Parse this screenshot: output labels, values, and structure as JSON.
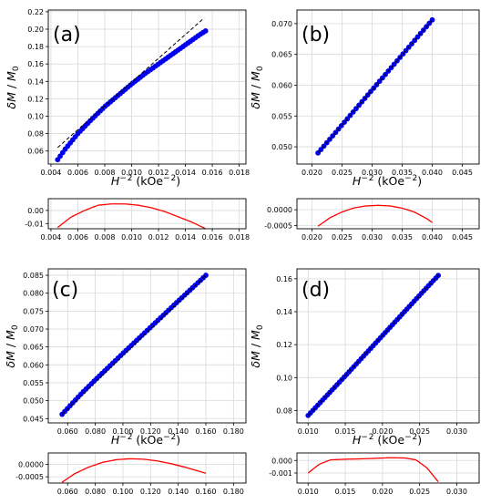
{
  "figure": {
    "panels": [
      {
        "id": "a",
        "label": "(a)"
      },
      {
        "id": "b",
        "label": "(b)"
      },
      {
        "id": "c",
        "label": "(c)"
      },
      {
        "id": "d",
        "label": "(d)"
      }
    ],
    "colors": {
      "points": "#0000ee",
      "fit_line": "#000000",
      "residual": "#ff0000",
      "grid": "#d9d9d9"
    }
  },
  "chart_data": [
    {
      "panel": "(a)",
      "type": "scatter",
      "xlabel": "H^-2 (kOe^-2)",
      "ylabel": "δM / M0",
      "xlim": [
        0.0038,
        0.0185
      ],
      "ylim": [
        0.045,
        0.222
      ],
      "xticks": [
        0.004,
        0.006,
        0.008,
        0.01,
        0.012,
        0.014,
        0.016,
        0.018
      ],
      "xtick_labels": [
        "0.004",
        "0.006",
        "0.008",
        "0.010",
        "0.012",
        "0.014",
        "0.016",
        "0.018"
      ],
      "yticks": [
        0.06,
        0.08,
        0.1,
        0.12,
        0.14,
        0.16,
        0.18,
        0.2,
        0.22
      ],
      "ytick_labels": [
        "0.06",
        "0.08",
        "0.10",
        "0.12",
        "0.14",
        "0.16",
        "0.18",
        "0.20",
        "0.22"
      ],
      "grid": true,
      "series": [
        {
          "kind": "points",
          "x_start": 0.0045,
          "x_end": 0.0155,
          "count": 60,
          "curve": [
            [
              0.0045,
              0.05
            ],
            [
              0.005,
              0.061
            ],
            [
              0.006,
              0.08
            ],
            [
              0.007,
              0.096
            ],
            [
              0.008,
              0.111
            ],
            [
              0.009,
              0.124
            ],
            [
              0.01,
              0.137
            ],
            [
              0.011,
              0.149
            ],
            [
              0.012,
              0.16
            ],
            [
              0.013,
              0.171
            ],
            [
              0.014,
              0.182
            ],
            [
              0.015,
              0.193
            ],
            [
              0.0155,
              0.198
            ]
          ]
        },
        {
          "kind": "fit_line",
          "style": "dashed",
          "x": [
            0.0045,
            0.0154
          ],
          "y": [
            0.064,
            0.213
          ]
        }
      ],
      "residual": {
        "xlim": [
          0.0038,
          0.0185
        ],
        "ylim": [
          -0.014,
          0.009
        ],
        "yticks": [
          0.0,
          -0.01
        ],
        "ytick_labels": [
          "0.00",
          "-0.01"
        ],
        "xticks": [
          0.004,
          0.006,
          0.008,
          0.01,
          0.012,
          0.014,
          0.016,
          0.018
        ],
        "xtick_labels": [
          "0.004",
          "0.006",
          "0.008",
          "0.010",
          "0.012",
          "0.014",
          "0.016",
          "0.018"
        ],
        "curve": [
          [
            0.0045,
            -0.013
          ],
          [
            0.0055,
            -0.005
          ],
          [
            0.0065,
            0.0
          ],
          [
            0.0075,
            0.004
          ],
          [
            0.0085,
            0.005
          ],
          [
            0.0095,
            0.005
          ],
          [
            0.0105,
            0.004
          ],
          [
            0.0115,
            0.002
          ],
          [
            0.0125,
            -0.001
          ],
          [
            0.0135,
            -0.005
          ],
          [
            0.0145,
            -0.009
          ],
          [
            0.0155,
            -0.014
          ]
        ]
      }
    },
    {
      "panel": "(b)",
      "type": "scatter",
      "xlabel": "H^-2 (kOe^-2)",
      "ylabel": "δM / M0",
      "xlim": [
        0.0175,
        0.0478
      ],
      "ylim": [
        0.0472,
        0.0722
      ],
      "xticks": [
        0.02,
        0.025,
        0.03,
        0.035,
        0.04,
        0.045
      ],
      "xtick_labels": [
        "0.020",
        "0.025",
        "0.030",
        "0.035",
        "0.040",
        "0.045"
      ],
      "yticks": [
        0.05,
        0.055,
        0.06,
        0.065,
        0.07
      ],
      "ytick_labels": [
        "0.050",
        "0.055",
        "0.060",
        "0.065",
        "0.070"
      ],
      "grid": true,
      "series": [
        {
          "kind": "points",
          "x_start": 0.021,
          "x_end": 0.04,
          "count": 40,
          "curve": [
            [
              0.021,
              0.049
            ],
            [
              0.04,
              0.0706
            ]
          ]
        },
        {
          "kind": "fit_line",
          "style": "dashed",
          "x": [
            0.021,
            0.04
          ],
          "y": [
            0.049,
            0.0706
          ]
        }
      ],
      "residual": {
        "xlim": [
          0.0175,
          0.0478
        ],
        "ylim": [
          -0.0006,
          0.00035
        ],
        "yticks": [
          0.0,
          -0.0005
        ],
        "ytick_labels": [
          "0.0000",
          "-0.0005"
        ],
        "xticks": [
          0.02,
          0.025,
          0.03,
          0.035,
          0.04,
          0.045
        ],
        "xtick_labels": [
          "0.020",
          "0.025",
          "0.030",
          "0.035",
          "0.040",
          "0.045"
        ],
        "curve": [
          [
            0.021,
            -0.00052
          ],
          [
            0.023,
            -0.00025
          ],
          [
            0.025,
            -7e-05
          ],
          [
            0.027,
            6e-05
          ],
          [
            0.029,
            0.00012
          ],
          [
            0.031,
            0.00014
          ],
          [
            0.033,
            0.00012
          ],
          [
            0.035,
            5e-05
          ],
          [
            0.037,
            -7e-05
          ],
          [
            0.039,
            -0.00027
          ],
          [
            0.04,
            -0.0004
          ]
        ]
      }
    },
    {
      "panel": "(c)",
      "type": "scatter",
      "xlabel": "H^-2 (kOe^-2)",
      "ylabel": "δM / M0",
      "xlim": [
        0.046,
        0.189
      ],
      "ylim": [
        0.0438,
        0.0868
      ],
      "xticks": [
        0.06,
        0.08,
        0.1,
        0.12,
        0.14,
        0.16,
        0.18
      ],
      "xtick_labels": [
        "0.060",
        "0.080",
        "0.100",
        "0.120",
        "0.140",
        "0.160",
        "0.180"
      ],
      "yticks": [
        0.045,
        0.05,
        0.055,
        0.06,
        0.065,
        0.07,
        0.075,
        0.08,
        0.085
      ],
      "ytick_labels": [
        "0.045",
        "0.050",
        "0.055",
        "0.060",
        "0.065",
        "0.070",
        "0.075",
        "0.080",
        "0.085"
      ],
      "grid": true,
      "series": [
        {
          "kind": "points",
          "x_start": 0.056,
          "x_end": 0.16,
          "count": 55,
          "curve": [
            [
              0.056,
              0.0462
            ],
            [
              0.07,
              0.052
            ],
            [
              0.08,
              0.0558
            ],
            [
              0.1,
              0.0632
            ],
            [
              0.12,
              0.0705
            ],
            [
              0.14,
              0.0778
            ],
            [
              0.16,
              0.085
            ]
          ]
        },
        {
          "kind": "fit_line",
          "style": "dashed",
          "x": [
            0.056,
            0.16
          ],
          "y": [
            0.0462,
            0.085
          ]
        }
      ],
      "residual": {
        "xlim": [
          0.046,
          0.189
        ],
        "ylim": [
          -0.00075,
          0.00045
        ],
        "yticks": [
          0.0,
          -0.0005
        ],
        "ytick_labels": [
          "0.0000",
          "-0.0005"
        ],
        "xticks": [
          0.06,
          0.08,
          0.1,
          0.12,
          0.14,
          0.16,
          0.18
        ],
        "xtick_labels": [
          "0.060",
          "0.080",
          "0.100",
          "0.120",
          "0.140",
          "0.160",
          "0.180"
        ],
        "curve": [
          [
            0.056,
            -0.00072
          ],
          [
            0.065,
            -0.00038
          ],
          [
            0.075,
            -0.00012
          ],
          [
            0.085,
            7e-05
          ],
          [
            0.095,
            0.00018
          ],
          [
            0.105,
            0.00022
          ],
          [
            0.115,
            0.0002
          ],
          [
            0.125,
            0.00013
          ],
          [
            0.135,
            2e-05
          ],
          [
            0.145,
            -0.00012
          ],
          [
            0.155,
            -0.00028
          ],
          [
            0.16,
            -0.00036
          ]
        ]
      }
    },
    {
      "panel": "(d)",
      "type": "scatter",
      "xlabel": "H^-2 (kOe^-2)",
      "ylabel": "δM / M0",
      "xlim": [
        0.0085,
        0.033
      ],
      "ylim": [
        0.0725,
        0.166
      ],
      "xticks": [
        0.01,
        0.015,
        0.02,
        0.025,
        0.03
      ],
      "xtick_labels": [
        "0.010",
        "0.015",
        "0.020",
        "0.025",
        "0.030"
      ],
      "yticks": [
        0.08,
        0.1,
        0.12,
        0.14,
        0.16
      ],
      "ytick_labels": [
        "0.08",
        "0.10",
        "0.12",
        "0.14",
        "0.16"
      ],
      "grid": true,
      "series": [
        {
          "kind": "points",
          "x_start": 0.01,
          "x_end": 0.0275,
          "count": 55,
          "curve": [
            [
              0.01,
              0.077
            ],
            [
              0.015,
              0.101
            ],
            [
              0.02,
              0.1255
            ],
            [
              0.025,
              0.15
            ],
            [
              0.0275,
              0.162
            ]
          ]
        },
        {
          "kind": "fit_line",
          "style": "dashed",
          "x": [
            0.01,
            0.0275
          ],
          "y": [
            0.077,
            0.162
          ]
        }
      ],
      "residual": {
        "xlim": [
          0.0085,
          0.033
        ],
        "ylim": [
          -0.0018,
          0.0006
        ],
        "yticks": [
          0.0,
          -0.001
        ],
        "ytick_labels": [
          "0.000",
          "-0.001"
        ],
        "xticks": [
          0.01,
          0.015,
          0.02,
          0.025,
          0.03
        ],
        "xtick_labels": [
          "0.010",
          "0.015",
          "0.020",
          "0.025",
          "0.030"
        ],
        "curve": [
          [
            0.01,
            -0.001
          ],
          [
            0.0115,
            -0.0003
          ],
          [
            0.013,
            5e-05
          ],
          [
            0.015,
            0.0001
          ],
          [
            0.017,
            0.00013
          ],
          [
            0.019,
            0.00017
          ],
          [
            0.021,
            0.00022
          ],
          [
            0.023,
            0.0002
          ],
          [
            0.0245,
            5e-05
          ],
          [
            0.026,
            -0.0006
          ],
          [
            0.0275,
            -0.0017
          ]
        ]
      }
    }
  ]
}
